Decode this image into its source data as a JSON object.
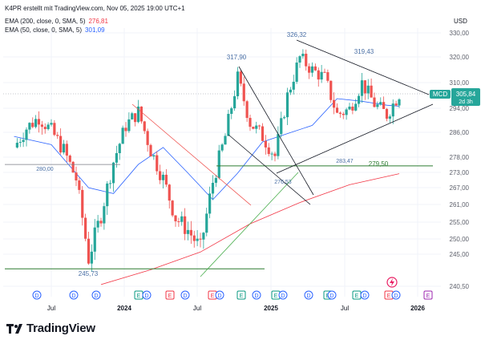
{
  "header": {
    "caption": "K4PR erstellt mit TradingView.com, Nov 05, 2025 19:00 UTC+1",
    "currency": "USD"
  },
  "indicators": [
    {
      "label": "EMA (200, close, 0, SMA, 5)",
      "value": "276,81",
      "color": "#f23645"
    },
    {
      "label": "EMA (50, close, 0, SMA, 5)",
      "value": "301,09",
      "color": "#2962ff"
    }
  ],
  "symbol": {
    "ticker": "MCD",
    "price": "305,84",
    "countdown": "2d 3h",
    "color": "#26a69a"
  },
  "brand": {
    "name": "TradingView"
  },
  "colors": {
    "up": "#26a69a",
    "down": "#ef5350",
    "grid": "#f0f3fa",
    "text": "#131722",
    "event_blue": "#2962ff",
    "event_green": "#089981",
    "event_red": "#f23645",
    "event_purple": "#9c27b0"
  },
  "chart_data": {
    "type": "candlestick",
    "y_axis": {
      "labels": [
        "330,00",
        "320,00",
        "310,00",
        "294,00",
        "286,00",
        "278,00",
        "273,00",
        "267,00",
        "261,00",
        "255,00",
        "250,00",
        "245,00",
        "240,50"
      ],
      "scale": "log",
      "position": "right"
    },
    "x_axis": {
      "labels": [
        "Jul",
        "2024",
        "Jul",
        "2025",
        "Jul",
        "2026"
      ]
    },
    "price_labels": [
      {
        "text": "326,32",
        "value": 326.32
      },
      {
        "text": "317,90",
        "value": 317.9
      },
      {
        "text": "319,43",
        "value": 319.43
      },
      {
        "text": "280,00",
        "value": 280.0
      },
      {
        "text": "283,47",
        "value": 283.47
      },
      {
        "text": "276,53",
        "value": 276.53
      },
      {
        "text": "245,73",
        "value": 245.73
      }
    ],
    "horizontal_levels": [
      {
        "text": "279,50",
        "value": 279.5,
        "color": "green"
      },
      {
        "value": 245.8,
        "color": "green"
      },
      {
        "value": 280.0,
        "color": "gray"
      }
    ],
    "trend_lines": [
      {
        "from": [
          "2023-11",
          314
        ],
        "to": [
          "2024-07",
          270
        ],
        "color": "red"
      },
      {
        "from": [
          "2024-07",
          245
        ],
        "to": [
          "2025-01",
          288
        ],
        "color": "green"
      },
      {
        "from": [
          "2024-09",
          286
        ],
        "to": [
          "2025-01",
          266
        ],
        "color": "dark"
      },
      {
        "from": [
          "2024-11",
          317
        ],
        "to": [
          "2025-02",
          266
        ],
        "color": "dark"
      },
      {
        "from": [
          "2025-02",
          328
        ],
        "to": [
          "2025-12",
          306
        ],
        "color": "dark"
      },
      {
        "from": [
          "2025-01",
          276
        ],
        "to": [
          "2025-12",
          301
        ],
        "color": "dark"
      }
    ],
    "ema": [
      {
        "name": "EMA 200",
        "color": "#f23645",
        "points": [
          [
            "2023-11",
            241
          ],
          [
            "2024-03",
            245.5
          ],
          [
            "2024-07",
            251
          ],
          [
            "2024-11",
            260
          ],
          [
            "2025-03",
            267
          ],
          [
            "2025-07",
            273
          ],
          [
            "2025-11",
            276.8
          ]
        ]
      },
      {
        "name": "EMA 50",
        "color": "#2962ff",
        "points": [
          [
            "2023-04",
            290
          ],
          [
            "2023-07",
            287
          ],
          [
            "2023-10",
            272
          ],
          [
            "2023-12",
            270
          ],
          [
            "2024-02",
            280
          ],
          [
            "2024-04",
            286
          ],
          [
            "2024-06",
            277
          ],
          [
            "2024-08",
            268
          ],
          [
            "2024-10",
            277
          ],
          [
            "2024-12",
            288
          ],
          [
            "2025-02",
            291
          ],
          [
            "2025-04",
            294
          ],
          [
            "2025-06",
            304
          ],
          [
            "2025-08",
            303
          ],
          [
            "2025-10",
            301.5
          ],
          [
            "2025-11",
            301.1
          ]
        ]
      }
    ],
    "ohlc_weekly_close": [
      [
        "2023-04",
        286
      ],
      [
        "2023-05",
        293
      ],
      [
        "2023-06",
        297
      ],
      [
        "2023-07",
        292
      ],
      [
        "2023-08",
        285
      ],
      [
        "2023-09",
        275
      ],
      [
        "2023-10",
        249
      ],
      [
        "2023-11",
        263
      ],
      [
        "2023-12",
        281
      ],
      [
        "2024-01",
        294
      ],
      [
        "2024-02",
        299
      ],
      [
        "2024-03",
        285
      ],
      [
        "2024-04",
        275
      ],
      [
        "2024-05",
        262
      ],
      [
        "2024-06",
        258
      ],
      [
        "2024-07",
        252
      ],
      [
        "2024-08",
        274
      ],
      [
        "2024-09",
        290
      ],
      [
        "2024-10",
        312
      ],
      [
        "2024-11",
        295
      ],
      [
        "2024-12",
        290
      ],
      [
        "2025-01",
        283
      ],
      [
        "2025-02",
        305
      ],
      [
        "2025-03",
        320
      ],
      [
        "2025-04",
        315
      ],
      [
        "2025-05",
        312
      ],
      [
        "2025-06",
        298
      ],
      [
        "2025-07",
        300
      ],
      [
        "2025-08",
        310
      ],
      [
        "2025-09",
        302
      ],
      [
        "2025-10",
        298
      ],
      [
        "2025-11",
        305.84
      ]
    ]
  }
}
